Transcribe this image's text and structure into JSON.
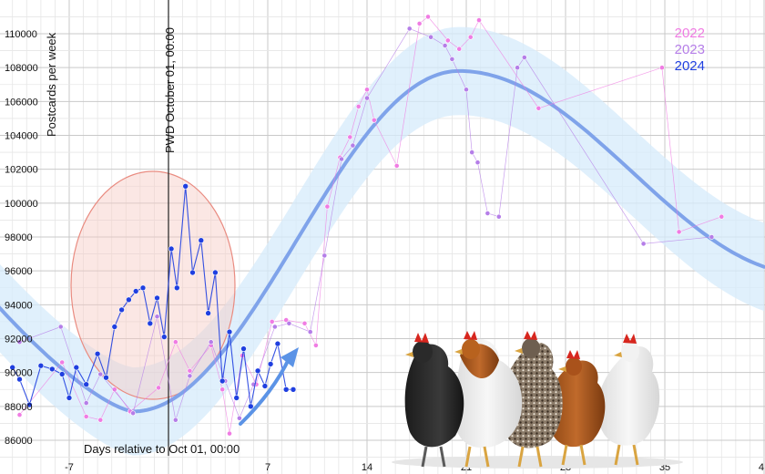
{
  "chart_data": {
    "type": "line",
    "xlabel": "Days relative to Oct 01, 00:00",
    "ylabel": "Postcards per week",
    "x_ticks": [
      "-7",
      "7",
      "14",
      "21",
      "28",
      "35",
      "4"
    ],
    "y_ticks": [
      "86000",
      "88000",
      "90000",
      "92000",
      "94000",
      "96000",
      "98000",
      "100000",
      "102000",
      "104000",
      "106000",
      "108000",
      "110000"
    ],
    "xlim": [
      -12,
      42
    ],
    "ylim": [
      85000,
      111500
    ],
    "grid": true,
    "legend_position": "top-right",
    "annotation": "PWD October 01, 00:00",
    "annotation_x": 0,
    "series": [
      {
        "name": "2022",
        "color": "#f07ce3",
        "points": [
          [
            -10.5,
            87500
          ],
          [
            -7.5,
            90600
          ],
          [
            -5.8,
            87400
          ],
          [
            -4.8,
            87200
          ],
          [
            -3.8,
            89000
          ],
          [
            -2.7,
            87700
          ],
          [
            -0.7,
            89100
          ],
          [
            0.5,
            91800
          ],
          [
            1.5,
            90100
          ],
          [
            3,
            91600
          ],
          [
            3.8,
            89000
          ],
          [
            4.3,
            86400
          ],
          [
            5.2,
            91000
          ],
          [
            6.2,
            89300
          ],
          [
            7.3,
            93000
          ],
          [
            8.3,
            93100
          ],
          [
            9.6,
            92900
          ],
          [
            10.4,
            91600
          ],
          [
            11.2,
            99800
          ],
          [
            12.1,
            102700
          ],
          [
            12.8,
            103900
          ],
          [
            13.4,
            105700
          ],
          [
            14,
            106700
          ],
          [
            14.5,
            104900
          ],
          [
            16.1,
            102200
          ],
          [
            17.7,
            110600
          ],
          [
            18.3,
            111000
          ],
          [
            19.7,
            109600
          ],
          [
            20.5,
            109100
          ],
          [
            21.3,
            109800
          ],
          [
            21.9,
            110800
          ],
          [
            26.1,
            105600
          ],
          [
            34.8,
            108000
          ],
          [
            36,
            98300
          ],
          [
            39,
            99200
          ]
        ]
      },
      {
        "name": "2023",
        "color": "#b57ee8",
        "points": [
          [
            -10.5,
            91800
          ],
          [
            -7.6,
            92700
          ],
          [
            -5.8,
            88200
          ],
          [
            -4.8,
            89900
          ],
          [
            -2.5,
            87600
          ],
          [
            -0.8,
            93300
          ],
          [
            0.5,
            87200
          ],
          [
            1.5,
            89800
          ],
          [
            3,
            91800
          ],
          [
            4,
            89500
          ],
          [
            5,
            87300
          ],
          [
            6,
            89300
          ],
          [
            7.5,
            92700
          ],
          [
            8.5,
            92900
          ],
          [
            10,
            92400
          ],
          [
            11,
            96900
          ],
          [
            12.2,
            102600
          ],
          [
            13,
            103400
          ],
          [
            14,
            106200
          ],
          [
            17,
            110300
          ],
          [
            18.5,
            109800
          ],
          [
            19.5,
            109300
          ],
          [
            20,
            108500
          ],
          [
            21,
            106700
          ],
          [
            21.4,
            103000
          ],
          [
            21.8,
            102400
          ],
          [
            22.5,
            99400
          ],
          [
            23.3,
            99200
          ],
          [
            24.6,
            108000
          ],
          [
            25.1,
            108600
          ],
          [
            33.5,
            97600
          ],
          [
            38.3,
            98000
          ]
        ]
      },
      {
        "name": "2024",
        "color": "#1f3fe0",
        "points": [
          [
            -11,
            90300
          ],
          [
            -10.5,
            89600
          ],
          [
            -9.8,
            88100
          ],
          [
            -9.0,
            90400
          ],
          [
            -8.2,
            90200
          ],
          [
            -7.5,
            89900
          ],
          [
            -7.0,
            88500
          ],
          [
            -6.5,
            90300
          ],
          [
            -5.8,
            89300
          ],
          [
            -5.0,
            91100
          ],
          [
            -4.4,
            89700
          ],
          [
            -3.8,
            92700
          ],
          [
            -3.3,
            93700
          ],
          [
            -2.8,
            94300
          ],
          [
            -2.3,
            94800
          ],
          [
            -1.8,
            95000
          ],
          [
            -1.3,
            92900
          ],
          [
            -0.8,
            94400
          ],
          [
            -0.3,
            92100
          ],
          [
            0.2,
            97300
          ],
          [
            0.6,
            95000
          ],
          [
            1.2,
            101000
          ],
          [
            1.7,
            95900
          ],
          [
            2.3,
            97800
          ],
          [
            2.8,
            93500
          ],
          [
            3.3,
            95900
          ],
          [
            3.8,
            89500
          ],
          [
            4.3,
            92400
          ],
          [
            4.8,
            88500
          ],
          [
            5.3,
            91400
          ],
          [
            5.8,
            88000
          ],
          [
            6.3,
            90100
          ],
          [
            6.8,
            89200
          ],
          [
            7.2,
            90500
          ],
          [
            7.7,
            91700
          ],
          [
            8.3,
            89000
          ],
          [
            8.8,
            89000
          ]
        ]
      }
    ]
  }
}
